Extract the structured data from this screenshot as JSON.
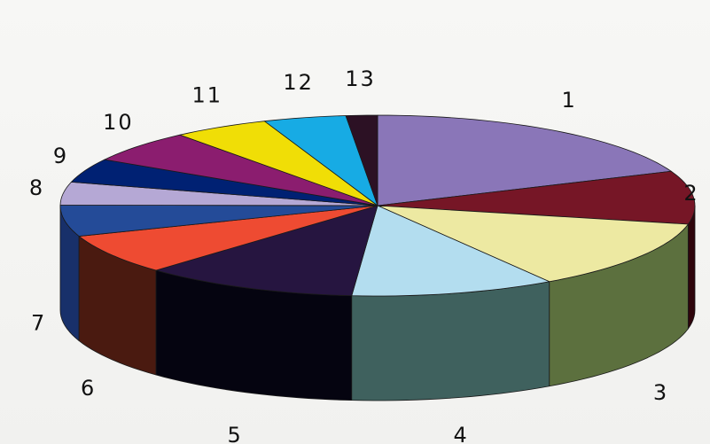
{
  "chart_data": {
    "type": "pie",
    "style": "3d",
    "title": "",
    "legend": "none",
    "labels": [
      "1",
      "2",
      "3",
      "4",
      "5",
      "6",
      "7",
      "8",
      "9",
      "10",
      "11",
      "12",
      "13"
    ],
    "values": [
      18.8,
      9.5,
      12.6,
      10.4,
      11.0,
      7.2,
      5.6,
      4.1,
      4.3,
      5.8,
      4.9,
      4.2,
      1.6
    ],
    "colors": [
      "#8a76b8",
      "#761626",
      "#ede9a2",
      "#b3ddef",
      "#261540",
      "#ee4b32",
      "#244b98",
      "#b5a8d5",
      "#002173",
      "#8b1d6f",
      "#f0de06",
      "#17abe4",
      "#2c1124"
    ],
    "side_colors": [
      "#50426e",
      "#2f050c",
      "#5c703e",
      "#3f615e",
      "#050410",
      "#4a1a10",
      "#18306a",
      "#776b95",
      "#00123f",
      "#5a1148",
      "#a59400",
      "#0d6f96",
      "#160612"
    ]
  }
}
